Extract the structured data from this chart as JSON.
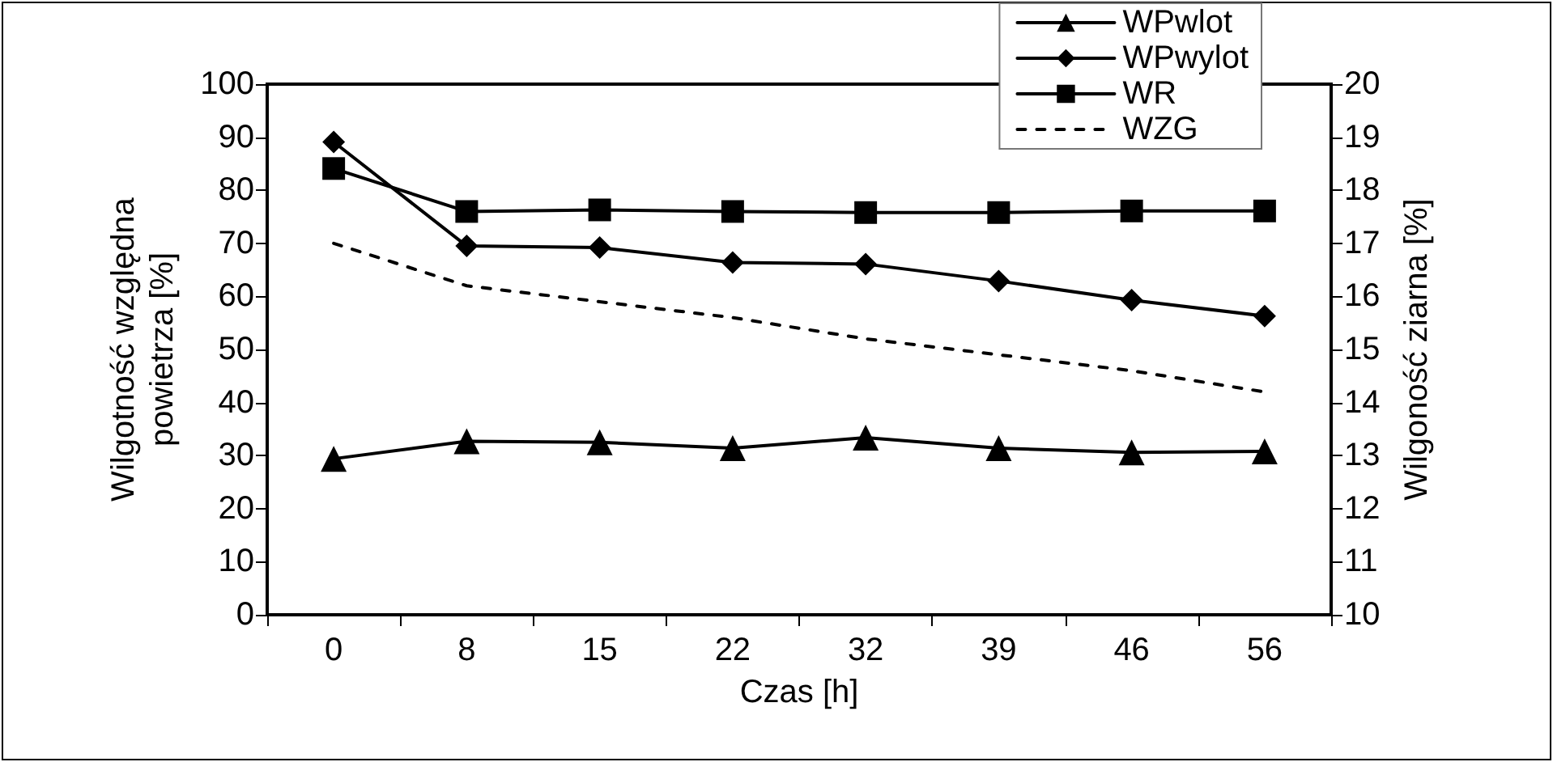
{
  "chart_data": {
    "type": "line",
    "xlabel": "Czas [h]",
    "ylabel": "Wilgotność względna\npowietrza [%]",
    "y2label": "Wilgoność ziarna [%]",
    "categories": [
      "0",
      "8",
      "15",
      "22",
      "32",
      "39",
      "46",
      "56"
    ],
    "series": [
      {
        "name": "WPwlot",
        "color": "#000000",
        "marker": "triangle",
        "line_style": "solid",
        "values": [
          29.4,
          32.7,
          32.5,
          31.4,
          33.4,
          31.4,
          30.6,
          30.8
        ]
      },
      {
        "name": "WPwylot",
        "color": "#000000",
        "marker": "diamond",
        "line_style": "solid",
        "values": [
          89.1,
          69.5,
          69.2,
          66.4,
          66.1,
          62.9,
          59.3,
          56.3
        ]
      },
      {
        "name": "WR",
        "color": "#000000",
        "marker": "square",
        "line_style": "solid",
        "values": [
          84.1,
          76.0,
          76.3,
          76.0,
          75.8,
          75.8,
          76.1,
          76.1
        ]
      },
      {
        "name": "WZG",
        "color": "#000000",
        "marker": "none",
        "line_style": "dashed",
        "axis": "y2",
        "values": [
          17.0,
          16.2,
          15.9,
          15.6,
          15.2,
          14.9,
          14.6,
          14.2
        ]
      }
    ],
    "ylim": [
      0,
      100
    ],
    "yticks": [
      0,
      10,
      20,
      30,
      40,
      50,
      60,
      70,
      80,
      90,
      100
    ],
    "y2lim": [
      10,
      20
    ],
    "y2ticks": [
      10,
      11,
      12,
      13,
      14,
      15,
      16,
      17,
      18,
      19,
      20
    ],
    "grid": false,
    "legend": "top right"
  }
}
